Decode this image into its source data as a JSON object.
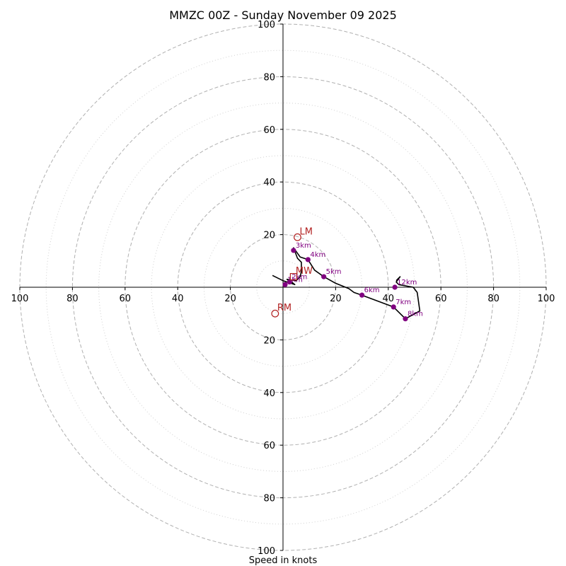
{
  "chart_data": {
    "type": "hodograph",
    "title": "MMZC 00Z - Sunday November 09 2025",
    "xlabel": "Speed in knots",
    "range": [
      -100,
      100
    ],
    "ring_major": [
      20,
      40,
      60,
      80,
      100
    ],
    "ring_minor": [
      10,
      30,
      50,
      70,
      90
    ],
    "x_tick_labels": [
      "100",
      "80",
      "60",
      "40",
      "20",
      "20",
      "40",
      "60",
      "80",
      "100"
    ],
    "y_tick_labels": [
      "100",
      "80",
      "60",
      "40",
      "20",
      "20",
      "40",
      "60",
      "80",
      "100"
    ],
    "x_tick_values": [
      -100,
      -80,
      -60,
      -40,
      -20,
      20,
      40,
      60,
      80,
      100
    ],
    "y_tick_values": [
      100,
      80,
      60,
      40,
      20,
      -20,
      -40,
      -60,
      -80,
      -100
    ],
    "hodo_line": [
      [
        -4,
        4.5
      ],
      [
        0,
        2.5
      ],
      [
        3,
        1.5
      ],
      [
        4.5,
        1.0
      ],
      [
        3.5,
        1.8
      ],
      [
        1.5,
        3.0
      ],
      [
        5.0,
        2.5
      ],
      [
        6.5,
        4.0
      ],
      [
        7.0,
        6.0
      ],
      [
        7.0,
        9.5
      ],
      [
        5.5,
        11.0
      ],
      [
        4.0,
        15.0
      ],
      [
        6.5,
        11.5
      ],
      [
        9.5,
        10.5
      ],
      [
        12.0,
        6.5
      ],
      [
        15.5,
        4.0
      ],
      [
        20.0,
        1.5
      ],
      [
        25.0,
        -0.5
      ],
      [
        27.0,
        -2.0
      ],
      [
        30.0,
        -3.0
      ],
      [
        42.0,
        -7.5
      ],
      [
        46.5,
        -12.0
      ],
      [
        52.0,
        -9.0
      ],
      [
        51.0,
        -2.0
      ],
      [
        49.5,
        0.0
      ],
      [
        44.0,
        1.0
      ],
      [
        43.0,
        2.0
      ],
      [
        44.5,
        4.0
      ],
      [
        43.0,
        2.5
      ]
    ],
    "height_markers": [
      {
        "label": "1km",
        "u": 0.8,
        "v": 1.0
      },
      {
        "label": "2km",
        "u": 2.5,
        "v": 2.0
      },
      {
        "label": "3km",
        "u": 4.0,
        "v": 14.0
      },
      {
        "label": "4km",
        "u": 9.5,
        "v": 10.5
      },
      {
        "label": "5km",
        "u": 15.5,
        "v": 4.0
      },
      {
        "label": "6km",
        "u": 30.0,
        "v": -3.0
      },
      {
        "label": "7km",
        "u": 42.0,
        "v": -7.5
      },
      {
        "label": "8km",
        "u": 46.5,
        "v": -12.0
      },
      {
        "label": "12km",
        "u": 42.5,
        "v": 0.0
      }
    ],
    "storm_motion": [
      {
        "label": "LM",
        "u": 5.5,
        "v": 19.0,
        "marker": "circle"
      },
      {
        "label": "MW",
        "u": 4.0,
        "v": 4.0,
        "marker": "square"
      },
      {
        "label": "RM",
        "u": -3.0,
        "v": -10.0,
        "marker": "circle"
      }
    ],
    "colors": {
      "hodo_line": "#000000",
      "height_marker": "#800080",
      "storm_motion": "#b22222",
      "grid": "#b0b0b0",
      "grid_minor": "#d0d0d0"
    }
  }
}
